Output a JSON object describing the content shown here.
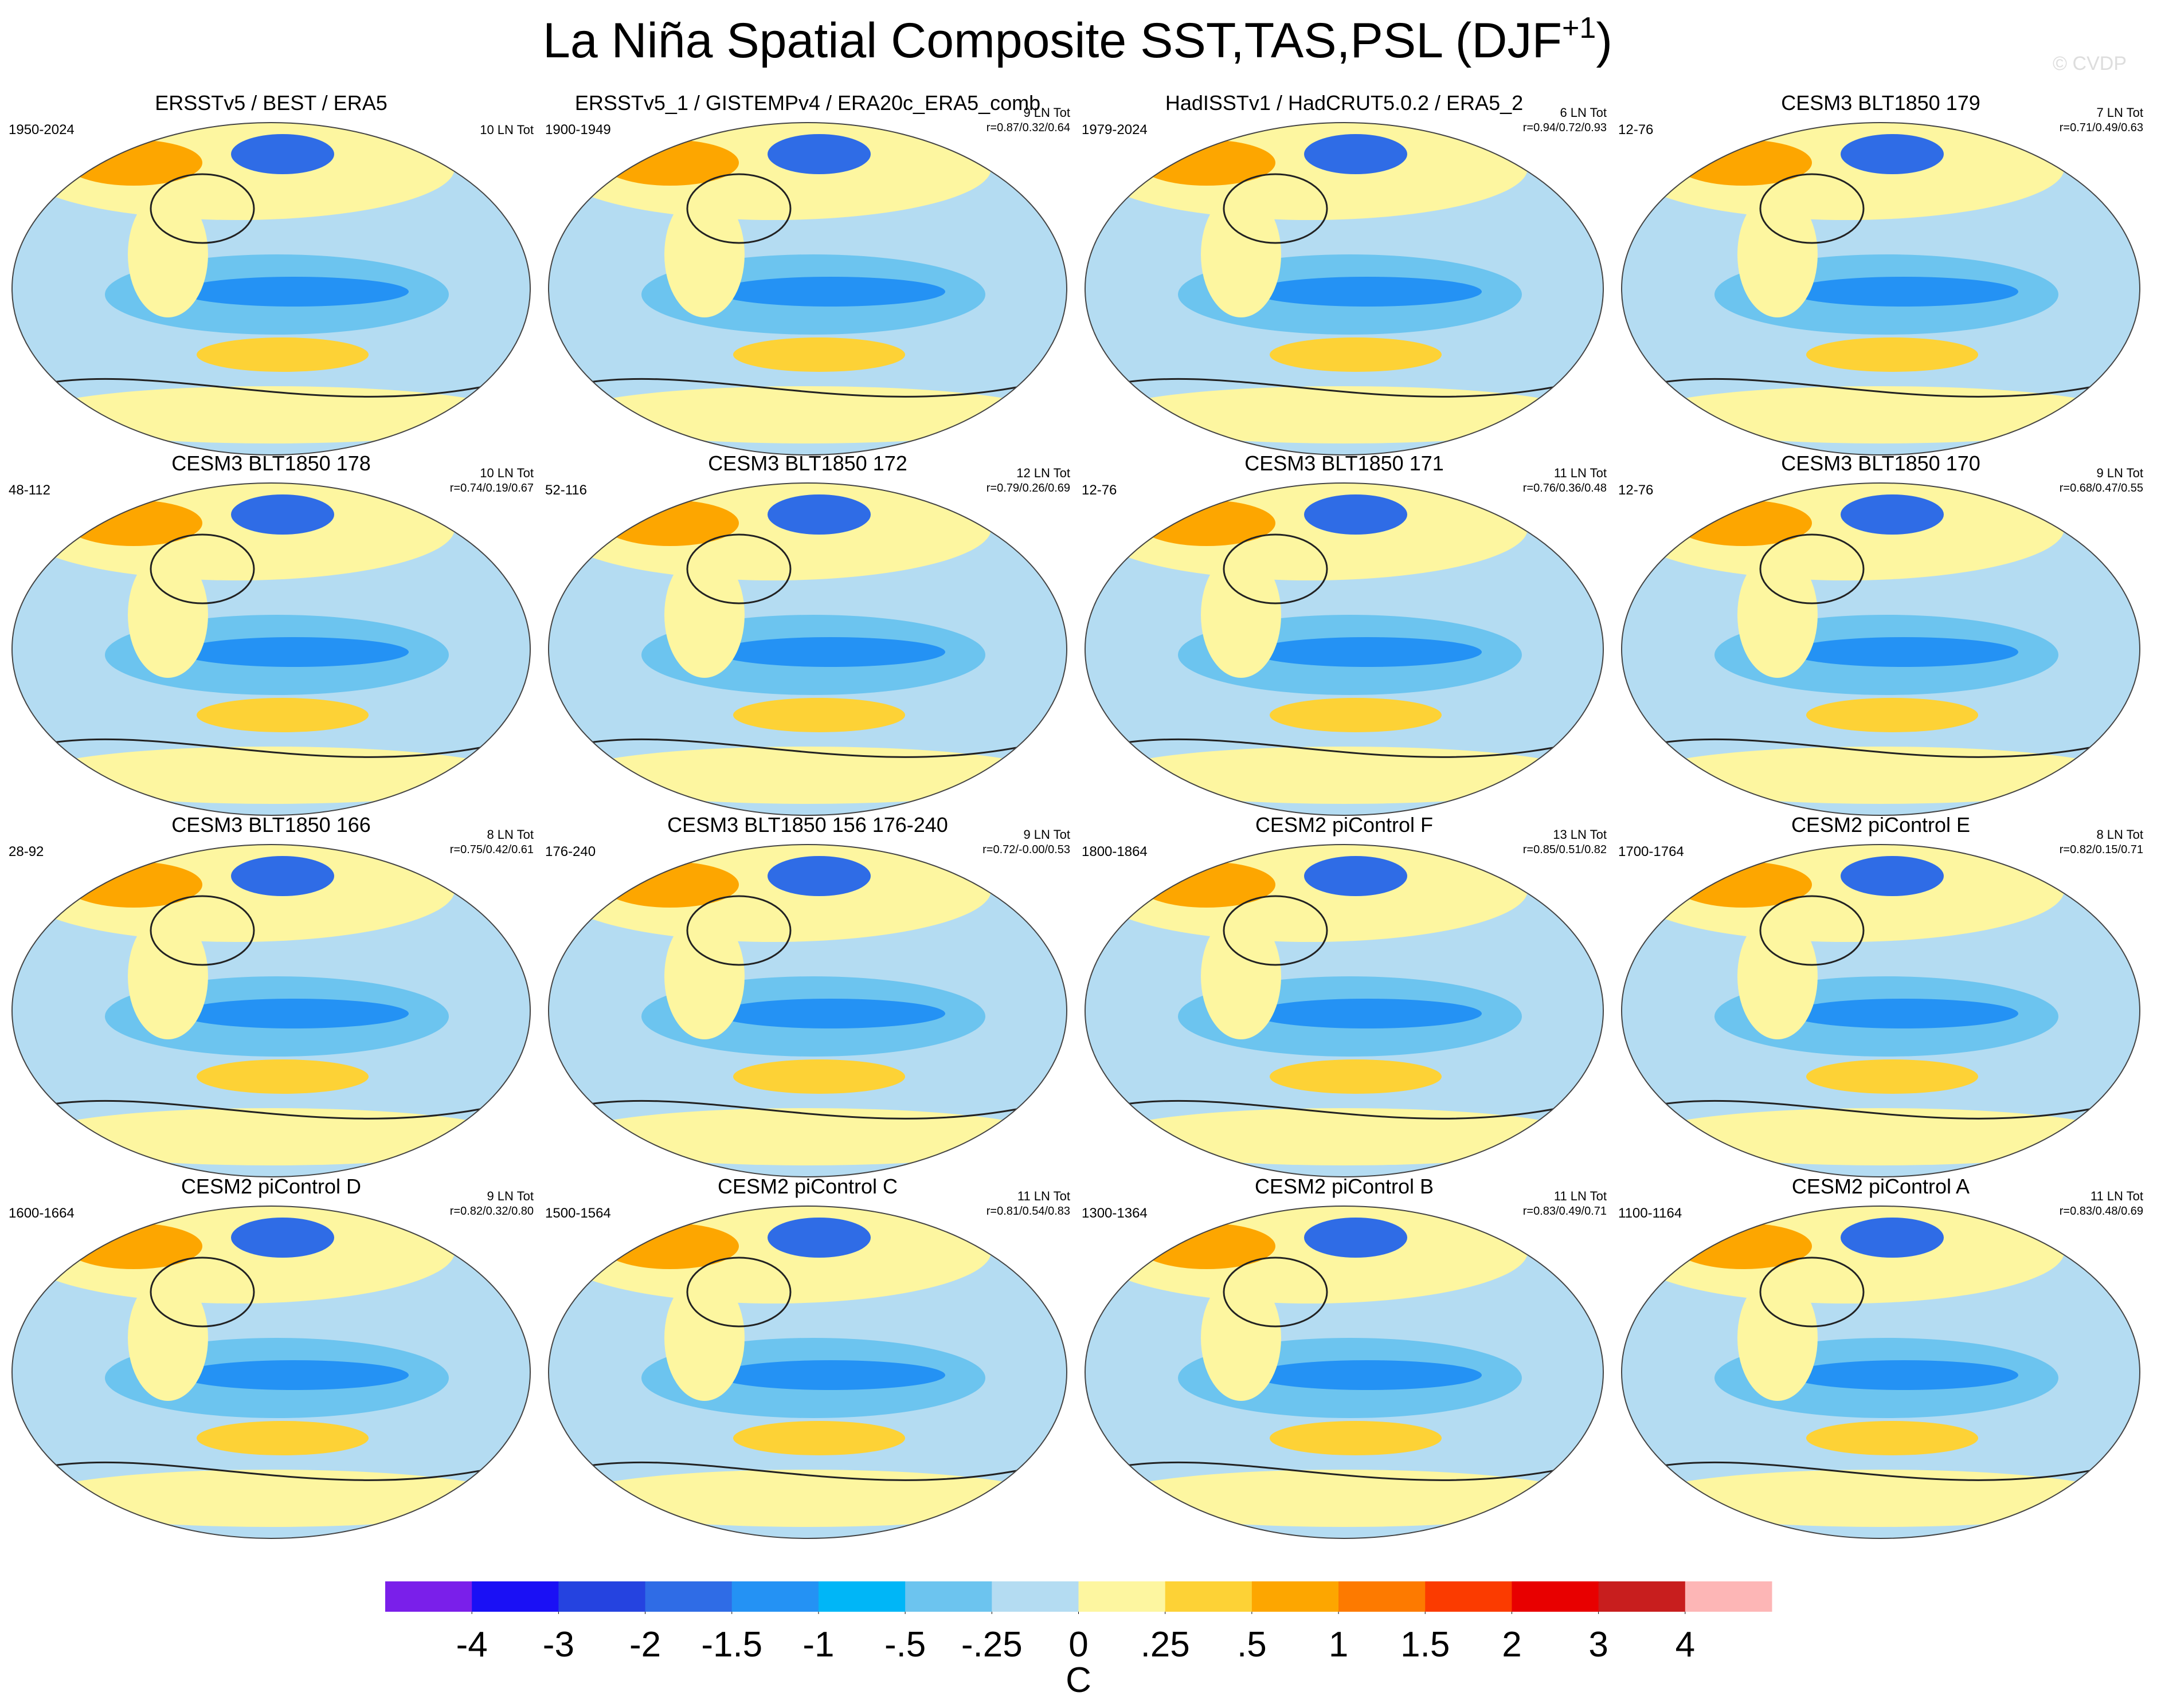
{
  "chart_data": {
    "type": "map-panels",
    "title": "La Niña Spatial Composite SST,TAS,PSL (DJF",
    "title_superscript": "+1",
    "title_end": ")",
    "watermark": "© CVDP",
    "panels": [
      {
        "title": "ERSSTv5 / BEST / ERA5",
        "period": "1950-2024",
        "count": "10 LN Tot"
      },
      {
        "title": "ERSSTv5_1 / GISTEMPv4 / ERA20c_ERA5_comb",
        "period": "1900-1949",
        "count": "9 LN Tot",
        "corr": "r=0.87/0.32/0.64"
      },
      {
        "title": "HadISSTv1 / HadCRUT5.0.2 / ERA5_2",
        "period": "1979-2024",
        "count": "6 LN Tot",
        "corr": "r=0.94/0.72/0.93"
      },
      {
        "title": "CESM3 BLT1850 179",
        "period": "12-76",
        "count": "7 LN Tot",
        "corr": "r=0.71/0.49/0.63"
      },
      {
        "title": "CESM3 BLT1850 178",
        "period": "48-112",
        "count": "10 LN Tot",
        "corr": "r=0.74/0.19/0.67"
      },
      {
        "title": "CESM3 BLT1850 172",
        "period": "52-116",
        "count": "12 LN Tot",
        "corr": "r=0.79/0.26/0.69"
      },
      {
        "title": "CESM3 BLT1850 171",
        "period": "12-76",
        "count": "11 LN Tot",
        "corr": "r=0.76/0.36/0.48"
      },
      {
        "title": "CESM3 BLT1850 170",
        "period": "12-76",
        "count": "9 LN Tot",
        "corr": "r=0.68/0.47/0.55"
      },
      {
        "title": "CESM3 BLT1850 166",
        "period": "28-92",
        "count": "8 LN Tot",
        "corr": "r=0.75/0.42/0.61"
      },
      {
        "title": "CESM3 BLT1850 156 176-240",
        "period": "176-240",
        "count": "9 LN Tot",
        "corr": "r=0.72/-0.00/0.53"
      },
      {
        "title": "CESM2 piControl F",
        "period": "1800-1864",
        "count": "13 LN Tot",
        "corr": "r=0.85/0.51/0.82"
      },
      {
        "title": "CESM2 piControl E",
        "period": "1700-1764",
        "count": "8 LN Tot",
        "corr": "r=0.82/0.15/0.71"
      },
      {
        "title": "CESM2 piControl D",
        "period": "1600-1664",
        "count": "9 LN Tot",
        "corr": "r=0.82/0.32/0.80"
      },
      {
        "title": "CESM2 piControl C",
        "period": "1500-1564",
        "count": "11 LN Tot",
        "corr": "r=0.81/0.54/0.83"
      },
      {
        "title": "CESM2 piControl B",
        "period": "1300-1364",
        "count": "11 LN Tot",
        "corr": "r=0.83/0.49/0.71"
      },
      {
        "title": "CESM2 piControl A",
        "period": "1100-1164",
        "count": "11 LN Tot",
        "corr": "r=0.83/0.48/0.69"
      }
    ],
    "colorbar": {
      "label": "C",
      "colors": [
        "#7a1fea",
        "#1a10f5",
        "#2543e0",
        "#2f6ce6",
        "#2492f4",
        "#00b6f7",
        "#6cc4ef",
        "#b4dcf2",
        "#fdf6a0",
        "#fdd236",
        "#fda600",
        "#fd7a00",
        "#fb3b00",
        "#e80000",
        "#c81e1e",
        "#fdb6b6"
      ],
      "ticks": [
        -4,
        -3,
        -2,
        {
          "value": -1.5,
          "label": "-1.5"
        },
        -1,
        {
          "value": -0.5,
          "label": "-.5"
        },
        {
          "value": -0.25,
          "label": "-.25"
        },
        0,
        {
          "value": 0.25,
          "label": ".25"
        },
        {
          "value": 0.5,
          "label": ".5"
        },
        1,
        {
          "value": 1.5,
          "label": "1.5"
        },
        2,
        3,
        4
      ]
    }
  }
}
